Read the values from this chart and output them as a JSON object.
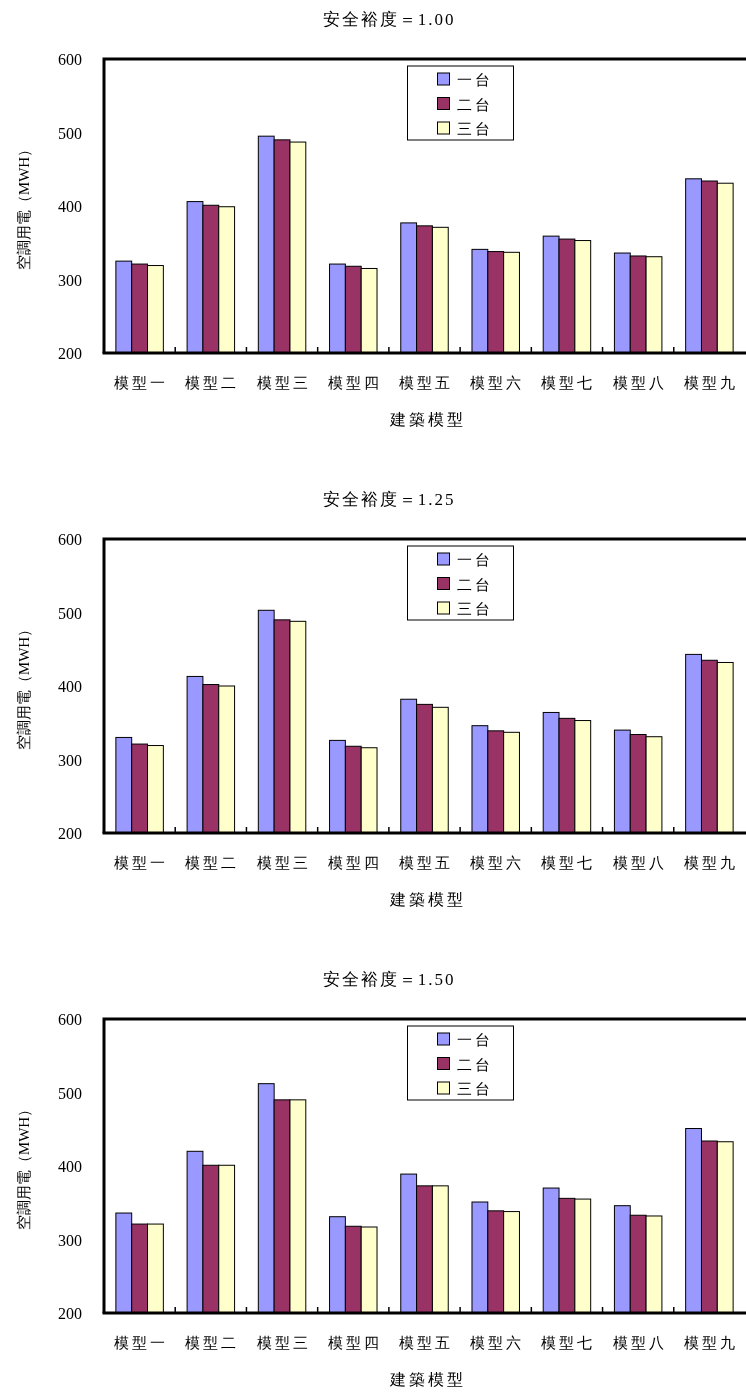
{
  "chart_data": [
    {
      "type": "bar",
      "title": "安全裕度＝1.00",
      "xlabel": "建築模型",
      "ylabel": "空調用電（MWH）",
      "categories": [
        "模型一",
        "模型二",
        "模型三",
        "模型四",
        "模型五",
        "模型六",
        "模型七",
        "模型八",
        "模型九"
      ],
      "series": [
        {
          "name": "一台",
          "color": "#9999ff",
          "values": [
            325,
            406,
            495,
            321,
            377,
            341,
            359,
            336,
            437
          ]
        },
        {
          "name": "二台",
          "color": "#993366",
          "values": [
            321,
            401,
            490,
            318,
            373,
            338,
            355,
            332,
            434
          ]
        },
        {
          "name": "三台",
          "color": "#ffffcc",
          "values": [
            319,
            399,
            487,
            315,
            371,
            337,
            353,
            331,
            431
          ]
        }
      ],
      "ylim": [
        200,
        600
      ],
      "yticks": [
        200,
        300,
        400,
        500,
        600
      ],
      "legend": "top"
    },
    {
      "type": "bar",
      "title": "安全裕度＝1.25",
      "xlabel": "建築模型",
      "ylabel": "空調用電（MWH）",
      "categories": [
        "模型一",
        "模型二",
        "模型三",
        "模型四",
        "模型五",
        "模型六",
        "模型七",
        "模型八",
        "模型九"
      ],
      "series": [
        {
          "name": "一台",
          "color": "#9999ff",
          "values": [
            330,
            413,
            503,
            326,
            382,
            346,
            364,
            340,
            443
          ]
        },
        {
          "name": "二台",
          "color": "#993366",
          "values": [
            321,
            402,
            490,
            318,
            375,
            339,
            356,
            334,
            435
          ]
        },
        {
          "name": "三台",
          "color": "#ffffcc",
          "values": [
            319,
            400,
            488,
            316,
            371,
            337,
            353,
            331,
            432
          ]
        }
      ],
      "ylim": [
        200,
        600
      ],
      "yticks": [
        200,
        300,
        400,
        500,
        600
      ],
      "legend": "top"
    },
    {
      "type": "bar",
      "title": "安全裕度＝1.50",
      "xlabel": "建築模型",
      "ylabel": "空調用電（MWH）",
      "categories": [
        "模型一",
        "模型二",
        "模型三",
        "模型四",
        "模型五",
        "模型六",
        "模型七",
        "模型八",
        "模型九"
      ],
      "series": [
        {
          "name": "一台",
          "color": "#9999ff",
          "values": [
            336,
            420,
            512,
            331,
            389,
            351,
            370,
            346,
            451
          ]
        },
        {
          "name": "二台",
          "color": "#993366",
          "values": [
            321,
            401,
            490,
            318,
            373,
            339,
            356,
            333,
            434
          ]
        },
        {
          "name": "三台",
          "color": "#ffffcc",
          "values": [
            321,
            401,
            490,
            317,
            373,
            338,
            355,
            332,
            433
          ]
        }
      ],
      "ylim": [
        200,
        600
      ],
      "yticks": [
        200,
        300,
        400,
        500,
        600
      ],
      "legend": "top"
    }
  ]
}
